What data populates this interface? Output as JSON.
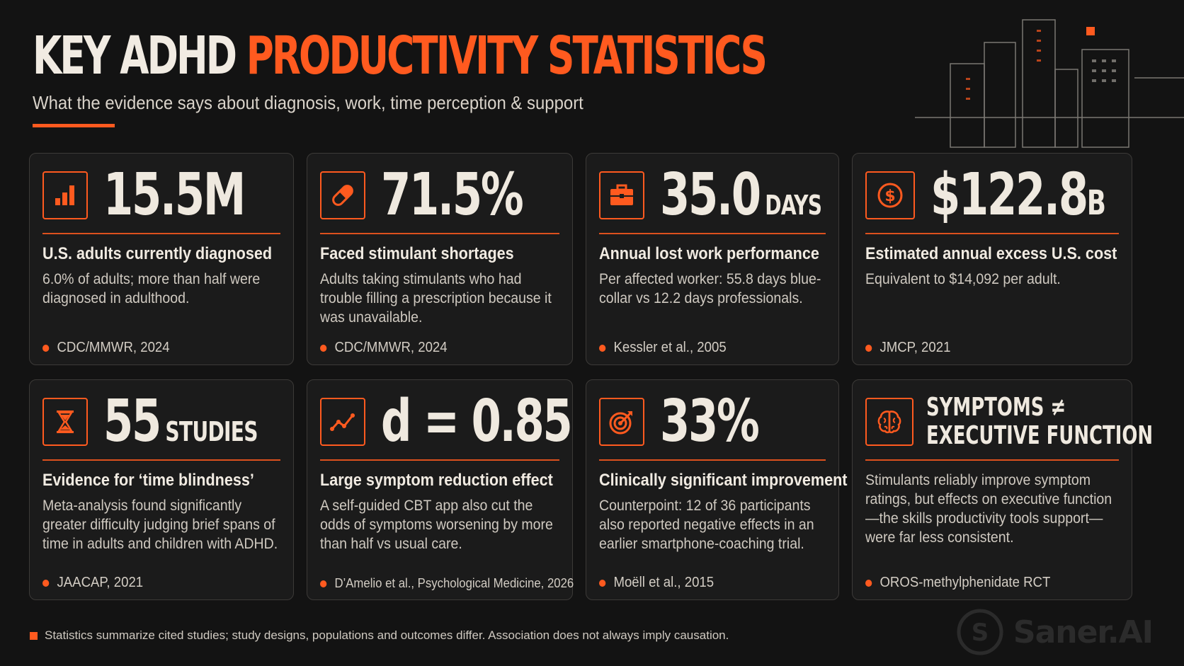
{
  "header": {
    "title_part1": "KEY ADHD",
    "title_part2": "PRODUCTIVITY STATISTICS",
    "subtitle": "What the evidence says about diagnosis, work, time perception & support"
  },
  "colors": {
    "accent": "#ff5a1f",
    "background": "#131313",
    "card": "#1b1b1b",
    "text": "#efe9df"
  },
  "cards": [
    {
      "icon": "bar-chart-icon",
      "value": "15.5M",
      "unit": "",
      "label": "U.S. adults currently diagnosed",
      "description": "6.0% of adults; more than half were diagnosed in adulthood.",
      "source": "CDC/MMWR, 2024"
    },
    {
      "icon": "pill-icon",
      "value": "71.5%",
      "unit": "",
      "label": "Faced stimulant shortages",
      "description": "Adults taking stimulants who had trouble filling a prescription because it was unavailable.",
      "source": "CDC/MMWR, 2024"
    },
    {
      "icon": "briefcase-icon",
      "value": "35.0",
      "unit": "DAYS",
      "label": "Annual lost work performance",
      "description": "Per affected worker: 55.8 days blue-collar vs 12.2 days professionals.",
      "source": "Kessler et al., 2005"
    },
    {
      "icon": "dollar-icon",
      "value": "$122.8",
      "unit": "B",
      "label": "Estimated annual excess U.S. cost",
      "description": "Equivalent to $14,092 per adult.",
      "source": "JMCP, 2021"
    },
    {
      "icon": "hourglass-icon",
      "value": "55",
      "unit": "STUDIES",
      "label": "Evidence for ‘time blindness’",
      "description": "Meta-analysis found significantly greater difficulty judging brief spans of time in adults and children with ADHD.",
      "source": "JAACAP, 2021"
    },
    {
      "icon": "trend-line-icon",
      "value": "d = 0.85",
      "unit": "",
      "label": "Large symptom reduction effect",
      "description": "A self-guided CBT app also cut the odds of symptoms worsening by more than half vs usual care.",
      "source": "D’Amelio et al., Psychological Medicine, 2026"
    },
    {
      "icon": "target-icon",
      "value": "33%",
      "unit": "",
      "label": "Clinically significant improvement",
      "description": "Counterpoint: 12 of 36 participants also reported negative effects in an earlier smartphone-coaching trial.",
      "source": "Moëll et al., 2015"
    },
    {
      "icon": "brain-icon",
      "heading_line1": "SYMPTOMS ≠",
      "heading_line2": "EXECUTIVE FUNCTION",
      "description": "Stimulants reliably improve symptom ratings, but effects on executive function—the skills productivity tools support—were far less consistent.",
      "source": "OROS-methylphenidate RCT"
    }
  ],
  "footnote": "Statistics summarize cited studies; study designs, populations and outcomes differ. Association does not always imply causation.",
  "watermark": {
    "logo_letter": "S",
    "text": "Saner.AI"
  }
}
